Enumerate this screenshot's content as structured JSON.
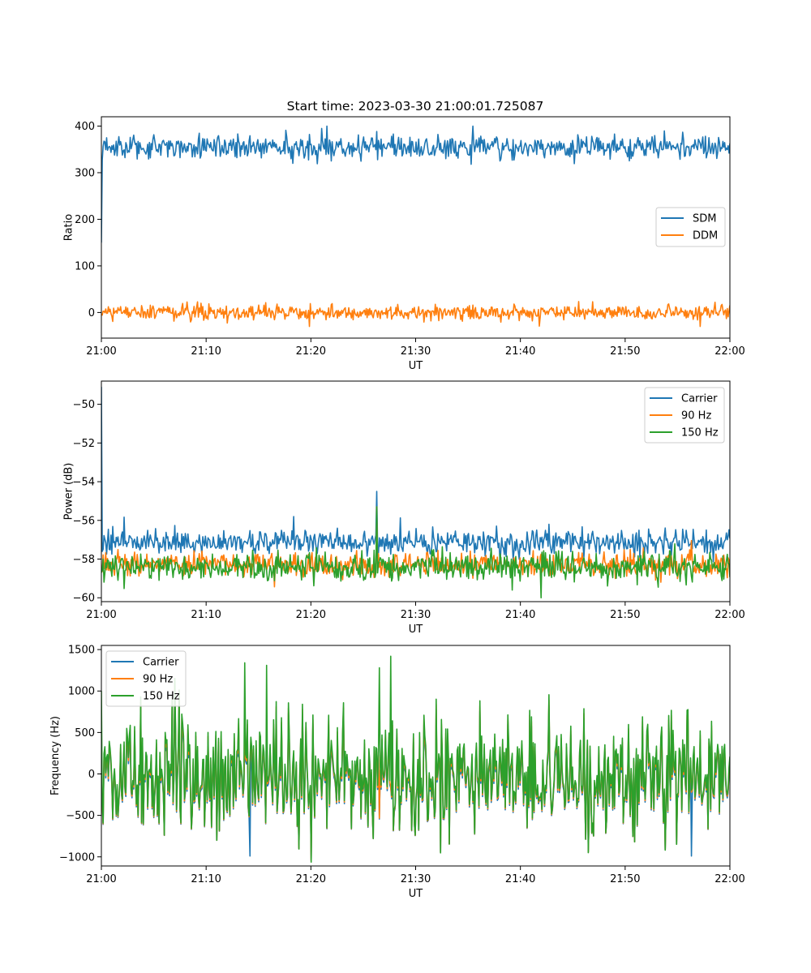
{
  "figure": {
    "title": "Start time: 2023-03-30 21:00:01.725087"
  },
  "chart_data": [
    {
      "type": "line",
      "xlabel": "UT",
      "ylabel": "Ratio",
      "x_range": [
        "21:00",
        "22:00"
      ],
      "x_ticks": [
        "21:00",
        "21:10",
        "21:20",
        "21:30",
        "21:40",
        "21:50",
        "22:00"
      ],
      "ylim": [
        -55,
        420
      ],
      "y_ticks": [
        0,
        100,
        200,
        300,
        400
      ],
      "y_tick_labels": [
        "0",
        "100",
        "200",
        "300",
        "400"
      ],
      "legend_position": "center-right",
      "grid": false,
      "series": [
        {
          "name": "SDM",
          "color": "#1f77b4",
          "mean": 355,
          "noise": 13,
          "start": 150,
          "spikes": [
            {
              "t": 21.5,
              "v": 400
            },
            {
              "t": 35.5,
              "v": 400
            },
            {
              "t": 21.0,
              "v": 395
            },
            {
              "t": 18.3,
              "v": 320
            },
            {
              "t": 35.3,
              "v": 318
            }
          ]
        },
        {
          "name": "DDM",
          "color": "#ff7f0e",
          "mean": 0,
          "noise": 8,
          "start": -5,
          "spikes": [
            {
              "t": 19.9,
              "v": -30
            },
            {
              "t": 57.2,
              "v": -30
            },
            {
              "t": 58.6,
              "v": 22
            }
          ]
        }
      ]
    },
    {
      "type": "line",
      "xlabel": "UT",
      "ylabel": "Power (dB)",
      "x_range": [
        "21:00",
        "22:00"
      ],
      "x_ticks": [
        "21:00",
        "21:10",
        "21:20",
        "21:30",
        "21:40",
        "21:50",
        "22:00"
      ],
      "ylim": [
        -60.2,
        -48.8
      ],
      "y_ticks": [
        -60,
        -58,
        -56,
        -54,
        -52,
        -50
      ],
      "y_tick_labels": [
        "−60",
        "−58",
        "−56",
        "−54",
        "−52",
        "−50"
      ],
      "legend_position": "top-right",
      "grid": false,
      "series": [
        {
          "name": "Carrier",
          "color": "#1f77b4",
          "mean": -57.1,
          "noise": 0.32,
          "start": -49.1,
          "spikes": [
            {
              "t": 26.3,
              "v": -54.5
            },
            {
              "t": 18.4,
              "v": -55.8
            },
            {
              "t": 42.7,
              "v": -56.2
            }
          ]
        },
        {
          "name": "90 Hz",
          "color": "#ff7f0e",
          "mean": -58.3,
          "noise": 0.32,
          "start": -58.6,
          "spikes": [
            {
              "t": 26.3,
              "v": -55.3
            }
          ]
        },
        {
          "name": "150 Hz",
          "color": "#2ca02c",
          "mean": -58.4,
          "noise": 0.38,
          "start": -58.7,
          "spikes": [
            {
              "t": 26.3,
              "v": -55.3
            },
            {
              "t": 39.2,
              "v": -59.6
            }
          ]
        }
      ]
    },
    {
      "type": "line",
      "xlabel": "UT",
      "ylabel": "Frequency (Hz)",
      "x_range": [
        "21:00",
        "22:00"
      ],
      "x_ticks": [
        "21:00",
        "21:10",
        "21:20",
        "21:30",
        "21:40",
        "21:50",
        "22:00"
      ],
      "ylim": [
        -1110,
        1550
      ],
      "y_ticks": [
        -1000,
        -500,
        0,
        500,
        1000,
        1500
      ],
      "y_tick_labels": [
        "−1000",
        "−500",
        "0",
        "500",
        "1000",
        "1500"
      ],
      "legend_position": "top-left",
      "grid": false,
      "series": [
        {
          "name": "Carrier",
          "color": "#1f77b4",
          "mean": -60,
          "noise": 330,
          "start": 0,
          "spikes": [
            {
              "t": 14.2,
              "v": -990
            },
            {
              "t": 56.3,
              "v": -990
            }
          ]
        },
        {
          "name": "90 Hz",
          "color": "#ff7f0e",
          "mean": -30,
          "noise": 330,
          "start": 0,
          "spikes": []
        },
        {
          "name": "150 Hz",
          "color": "#2ca02c",
          "mean": 0,
          "noise": 330,
          "start": 1000,
          "spikes": [
            {
              "t": 27.6,
              "v": 1420
            },
            {
              "t": 13.7,
              "v": 1340
            },
            {
              "t": 15.8,
              "v": 1310
            },
            {
              "t": 26.5,
              "v": 1280
            }
          ]
        }
      ]
    }
  ]
}
